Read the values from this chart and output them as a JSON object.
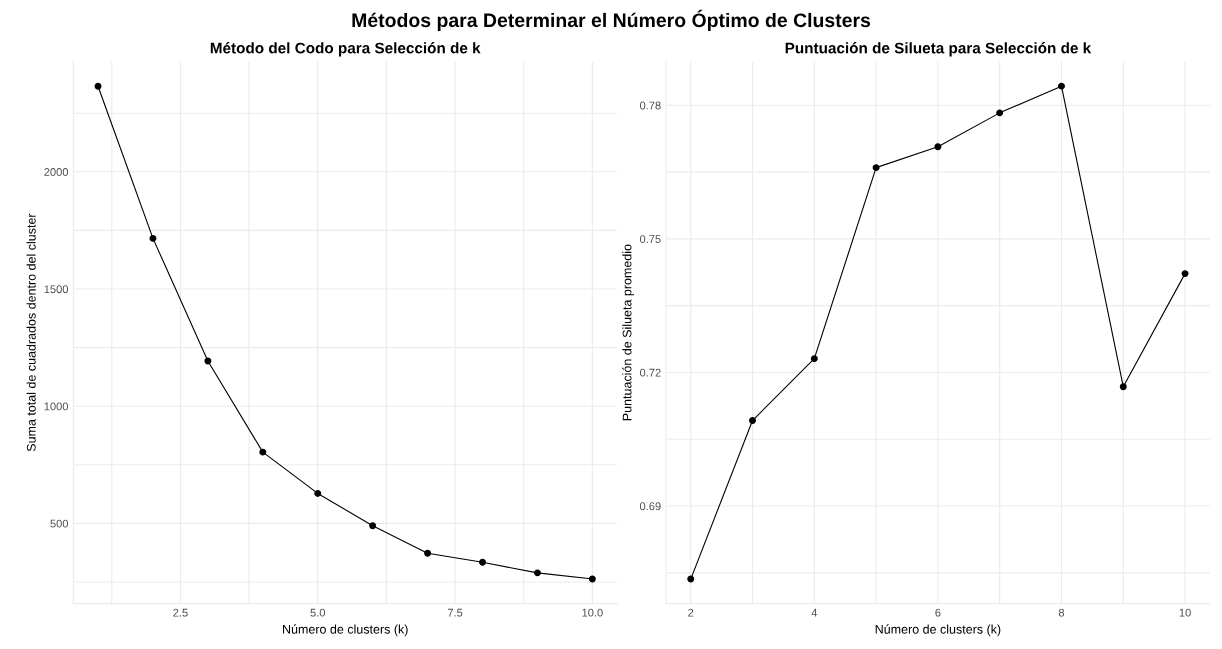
{
  "chart_data": [
    {
      "type": "line",
      "title": "Método del Codo para Selección de k",
      "xlabel": "Número de clusters (k)",
      "ylabel": "Suma total de cuadrados dentro del cluster",
      "annotations": [
        "Métodos para Determinar el Número Óptimo de Clusters"
      ],
      "x": [
        1,
        2,
        3,
        4,
        5,
        6,
        7,
        8,
        9,
        10
      ],
      "series": [
        {
          "color": "#000000",
          "values": [
            2365,
            1716,
            1193,
            804,
            628,
            490,
            373,
            334,
            289,
            263
          ]
        }
      ],
      "xlim": [
        0.55,
        10.45
      ],
      "xticks": [
        {
          "value": 1.25,
          "label": null
        },
        2.5,
        {
          "value": 3.75,
          "label": null
        },
        {
          "value": 5,
          "label": "5.0"
        },
        {
          "value": 6.25,
          "label": null
        },
        7.5,
        {
          "value": 8.75,
          "label": null
        },
        {
          "value": 10,
          "label": "10.0"
        }
      ],
      "ylim": [
        158,
        2470
      ],
      "yticks": [
        {
          "value": 250,
          "label": null
        },
        500,
        {
          "value": 750,
          "label": null
        },
        1000,
        {
          "value": 1250,
          "label": null
        },
        1500,
        {
          "value": 1750,
          "label": null
        },
        2000,
        {
          "value": 2250,
          "label": null
        }
      ],
      "grid": true,
      "marker": "circle",
      "line_style": "solid"
    },
    {
      "type": "line",
      "title": "Puntuación de Silueta para Selección de k",
      "xlabel": "Número de clusters (k)",
      "ylabel": "Puntuación de Silueta promedio",
      "x": [
        2,
        3,
        4,
        5,
        6,
        7,
        8,
        9,
        10
      ],
      "series": [
        {
          "color": "#000000",
          "values": [
            0.6736,
            0.7092,
            0.7231,
            0.766,
            0.7707,
            0.7783,
            0.7843,
            0.7168,
            0.7422
          ]
        }
      ],
      "xlim": [
        1.6,
        10.4
      ],
      "xticks": [
        2,
        {
          "value": 3,
          "label": null
        },
        4,
        {
          "value": 5,
          "label": null
        },
        6,
        {
          "value": 7,
          "label": null
        },
        8,
        {
          "value": 9,
          "label": null
        },
        10
      ],
      "ylim": [
        0.6681,
        0.7898
      ],
      "yticks": [
        {
          "value": 0.675,
          "label": null
        },
        0.69,
        {
          "value": 0.705,
          "label": null
        },
        0.72,
        {
          "value": 0.735,
          "label": null
        },
        0.75,
        {
          "value": 0.765,
          "label": null
        },
        0.78
      ],
      "grid": true,
      "marker": "circle",
      "line_style": "solid"
    }
  ]
}
